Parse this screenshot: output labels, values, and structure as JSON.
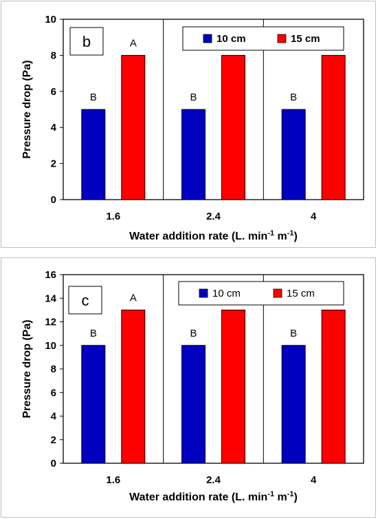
{
  "chart_data": [
    {
      "type": "bar",
      "panel_label": "b",
      "categories": [
        "1.6",
        "2.4",
        "4"
      ],
      "series": [
        {
          "name": "10 cm",
          "values": [
            5,
            5,
            5
          ],
          "letters": [
            "B",
            "B",
            "B"
          ],
          "color": "#0000c0"
        },
        {
          "name": "15 cm",
          "values": [
            8,
            8,
            8
          ],
          "letters": [
            "A",
            "",
            ""
          ],
          "color": "#ff0000"
        }
      ],
      "ylabel": "Pressure drop (Pa)",
      "xlabel": "Water addition rate (L. min",
      "xlabel_sup1": "-1",
      "xlabel_mid": " m",
      "xlabel_sup2": "-1",
      "xlabel_end": ")",
      "ylim": [
        0,
        10
      ],
      "yticks": [
        "0",
        "2",
        "4",
        "6",
        "8",
        "10"
      ],
      "legend_placement": "top-right",
      "legend_bold": true,
      "grid": false
    },
    {
      "type": "bar",
      "panel_label": "c",
      "categories": [
        "1.6",
        "2.4",
        "4"
      ],
      "series": [
        {
          "name": "10 cm",
          "values": [
            10,
            10,
            10
          ],
          "letters": [
            "B",
            "B",
            "B"
          ],
          "color": "#0000c0"
        },
        {
          "name": "15 cm",
          "values": [
            13,
            13,
            13
          ],
          "letters": [
            "A",
            "",
            ""
          ],
          "color": "#ff0000"
        }
      ],
      "ylabel": "Pressure drop (Pa)",
      "xlabel": "Water addition rate (L. min",
      "xlabel_sup1": "-1",
      "xlabel_mid": " m",
      "xlabel_sup2": "-1",
      "xlabel_end": ")",
      "ylim": [
        0,
        16
      ],
      "yticks": [
        "0",
        "2",
        "4",
        "6",
        "8",
        "10",
        "12",
        "14",
        "16"
      ],
      "legend_placement": "top-right",
      "legend_bold": false,
      "grid": false
    }
  ]
}
